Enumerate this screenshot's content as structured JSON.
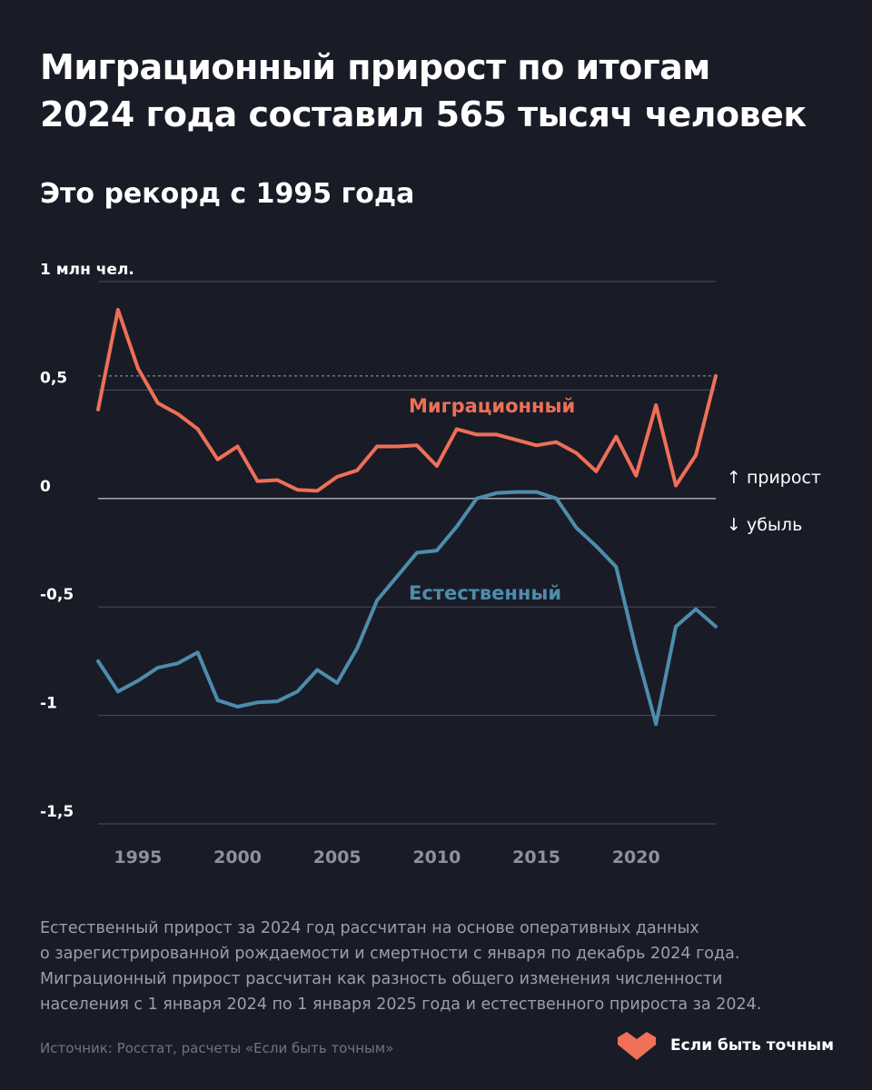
{
  "header": {
    "title": "Миграционный прирост по итогам\n2024 года составил 565 тысяч человек",
    "subtitle": "Это рекорд с 1995 года"
  },
  "chart_data": {
    "type": "line",
    "x": [
      1993,
      1994,
      1995,
      1996,
      1997,
      1998,
      1999,
      2000,
      2001,
      2002,
      2003,
      2004,
      2005,
      2006,
      2007,
      2008,
      2009,
      2010,
      2011,
      2012,
      2013,
      2014,
      2015,
      2016,
      2017,
      2018,
      2019,
      2020,
      2021,
      2022,
      2023,
      2024
    ],
    "x_ticks": [
      1995,
      2000,
      2005,
      2010,
      2015,
      2020
    ],
    "y_ticks": [
      {
        "value": 1,
        "label": "1 млн чел."
      },
      {
        "value": 0.5,
        "label": "0,5"
      },
      {
        "value": 0,
        "label": "0"
      },
      {
        "value": -0.5,
        "label": "-0,5"
      },
      {
        "value": -1,
        "label": "-1"
      },
      {
        "value": -1.5,
        "label": "-1,5"
      }
    ],
    "ylim": [
      -1.5,
      1
    ],
    "xlim": [
      1993,
      2024
    ],
    "reference_line": 0.565,
    "series": [
      {
        "name": "Миграционный",
        "color": "#ef6f58",
        "values": [
          0.41,
          0.87,
          0.6,
          0.44,
          0.39,
          0.32,
          0.18,
          0.24,
          0.08,
          0.085,
          0.04,
          0.035,
          0.1,
          0.13,
          0.24,
          0.24,
          0.245,
          0.15,
          0.32,
          0.295,
          0.295,
          0.27,
          0.245,
          0.26,
          0.21,
          0.125,
          0.285,
          0.105,
          0.43,
          0.06,
          0.2,
          0.565
        ]
      },
      {
        "name": "Естественный",
        "color": "#4e8cad",
        "values": [
          -0.75,
          -0.89,
          -0.84,
          -0.78,
          -0.76,
          -0.71,
          -0.93,
          -0.96,
          -0.94,
          -0.935,
          -0.89,
          -0.79,
          -0.85,
          -0.69,
          -0.47,
          -0.36,
          -0.25,
          -0.24,
          -0.13,
          0.0,
          0.025,
          0.03,
          0.03,
          0.0,
          -0.135,
          -0.22,
          -0.315,
          -0.7,
          -1.04,
          -0.59,
          -0.51,
          -0.59
        ]
      }
    ],
    "annotations": {
      "growth": "↑ прирост",
      "decline": "↓ убыль"
    }
  },
  "footer": {
    "note": "Естественный прирост за 2024 год рассчитан на основе оперативных данных\nо зарегистрированной рождаемости и смертности с января по декабрь 2024 года.\nМиграционный прирост рассчитан как разность общего изменения численности\nнаселения с 1 января 2024 по 1 января 2025 года и естественного прироста за 2024.",
    "source": "Источник: Росстат, расчеты «Если быть точным»",
    "brand": "Если быть точным",
    "brand_color": "#ef6f58"
  }
}
